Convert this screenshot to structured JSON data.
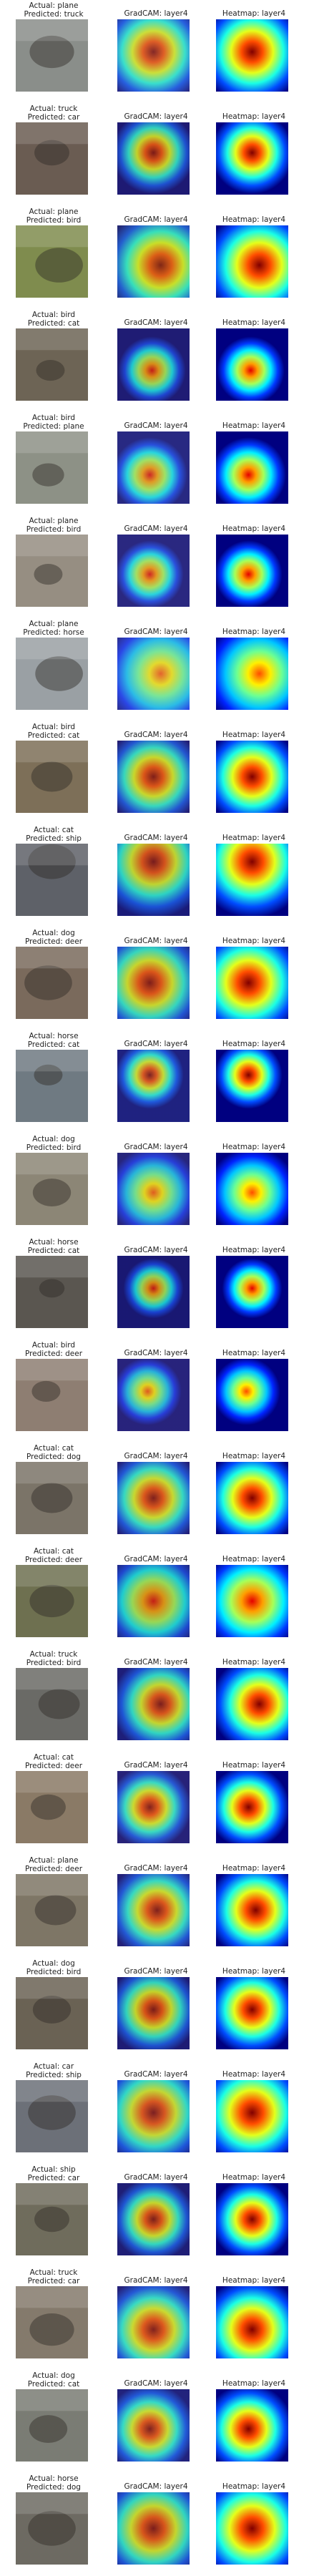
{
  "column_titles": {
    "gradcam": "GradCAM: layer4",
    "heatmap": "Heatmap: layer4"
  },
  "rows": [
    {
      "actual": "Actual: plane",
      "predicted": "Predicted: truck",
      "photo": "#8a8e8a",
      "focus": [
        0.5,
        0.45
      ],
      "spread": 0.28,
      "intensity": 1.0
    },
    {
      "actual": "Actual: truck",
      "predicted": "Predicted: car",
      "photo": "#6a5c52",
      "focus": [
        0.5,
        0.42
      ],
      "spread": 0.22,
      "intensity": 1.0
    },
    {
      "actual": "Actual: plane",
      "predicted": "Predicted: bird",
      "photo": "#7f8c4e",
      "focus": [
        0.6,
        0.55
      ],
      "spread": 0.3,
      "intensity": 1.0
    },
    {
      "actual": "Actual: bird",
      "predicted": "Predicted: cat",
      "photo": "#6d6455",
      "focus": [
        0.48,
        0.58
      ],
      "spread": 0.18,
      "intensity": 0.9
    },
    {
      "actual": "Actual: bird",
      "predicted": "Predicted: plane",
      "photo": "#8d9186",
      "focus": [
        0.45,
        0.6
      ],
      "spread": 0.2,
      "intensity": 0.9
    },
    {
      "actual": "Actual: plane",
      "predicted": "Predicted: bird",
      "photo": "#968e82",
      "focus": [
        0.45,
        0.55
      ],
      "spread": 0.18,
      "intensity": 0.9
    },
    {
      "actual": "Actual: plane",
      "predicted": "Predicted: horse",
      "photo": "#9aa0a4",
      "focus": [
        0.6,
        0.5
      ],
      "spread": 0.3,
      "intensity": 0.8
    },
    {
      "actual": "Actual: bird",
      "predicted": "Predicted: cat",
      "photo": "#7d6f58",
      "focus": [
        0.5,
        0.5
      ],
      "spread": 0.26,
      "intensity": 1.0
    },
    {
      "actual": "Actual: cat",
      "predicted": "Predicted: ship",
      "photo": "#5e6168",
      "focus": [
        0.5,
        0.25
      ],
      "spread": 0.3,
      "intensity": 1.0
    },
    {
      "actual": "Actual: dog",
      "predicted": "Predicted: deer",
      "photo": "#7a6a5c",
      "focus": [
        0.45,
        0.5
      ],
      "spread": 0.3,
      "intensity": 1.0
    },
    {
      "actual": "Actual: horse",
      "predicted": "Predicted: cat",
      "photo": "#6f7a82",
      "focus": [
        0.45,
        0.35
      ],
      "spread": 0.18,
      "intensity": 1.0
    },
    {
      "actual": "Actual: dog",
      "predicted": "Predicted: bird",
      "photo": "#8c8676",
      "focus": [
        0.5,
        0.55
      ],
      "spread": 0.24,
      "intensity": 0.8
    },
    {
      "actual": "Actual: horse",
      "predicted": "Predicted: cat",
      "photo": "#5a5650",
      "focus": [
        0.5,
        0.45
      ],
      "spread": 0.16,
      "intensity": 0.9
    },
    {
      "actual": "Actual: bird",
      "predicted": "Predicted: deer",
      "photo": "#8e7e72",
      "focus": [
        0.42,
        0.45
      ],
      "spread": 0.18,
      "intensity": 0.8
    },
    {
      "actual": "Actual: cat",
      "predicted": "Predicted: dog",
      "photo": "#7b7468",
      "focus": [
        0.5,
        0.5
      ],
      "spread": 0.26,
      "intensity": 1.0
    },
    {
      "actual": "Actual: cat",
      "predicted": "Predicted: deer",
      "photo": "#6e7050",
      "focus": [
        0.5,
        0.5
      ],
      "spread": 0.28,
      "intensity": 0.9
    },
    {
      "actual": "Actual: truck",
      "predicted": "Predicted: bird",
      "photo": "#6a6a66",
      "focus": [
        0.6,
        0.5
      ],
      "spread": 0.26,
      "intensity": 1.0
    },
    {
      "actual": "Actual: cat",
      "predicted": "Predicted: deer",
      "photo": "#8a7a66",
      "focus": [
        0.45,
        0.5
      ],
      "spread": 0.22,
      "intensity": 1.0
    },
    {
      "actual": "Actual: plane",
      "predicted": "Predicted: deer",
      "photo": "#7e7666",
      "focus": [
        0.55,
        0.5
      ],
      "spread": 0.26,
      "intensity": 1.0
    },
    {
      "actual": "Actual: dog",
      "predicted": "Predicted: bird",
      "photo": "#6a6254",
      "focus": [
        0.5,
        0.45
      ],
      "spread": 0.24,
      "intensity": 1.0
    },
    {
      "actual": "Actual: car",
      "predicted": "Predicted: ship",
      "photo": "#6c7078",
      "focus": [
        0.5,
        0.45
      ],
      "spread": 0.3,
      "intensity": 1.0
    },
    {
      "actual": "Actual: ship",
      "predicted": "Predicted: car",
      "photo": "#6f6c5c",
      "focus": [
        0.5,
        0.5
      ],
      "spread": 0.22,
      "intensity": 1.0
    },
    {
      "actual": "Actual: truck",
      "predicted": "Predicted: car",
      "photo": "#847a6c",
      "focus": [
        0.5,
        0.6
      ],
      "spread": 0.28,
      "intensity": 1.0
    },
    {
      "actual": "Actual: dog",
      "predicted": "Predicted: cat",
      "photo": "#7a7c74",
      "focus": [
        0.45,
        0.55
      ],
      "spread": 0.24,
      "intensity": 1.0
    },
    {
      "actual": "Actual: horse",
      "predicted": "Predicted: dog",
      "photo": "#6d6a62",
      "focus": [
        0.5,
        0.5
      ],
      "spread": 0.3,
      "intensity": 1.0
    }
  ]
}
